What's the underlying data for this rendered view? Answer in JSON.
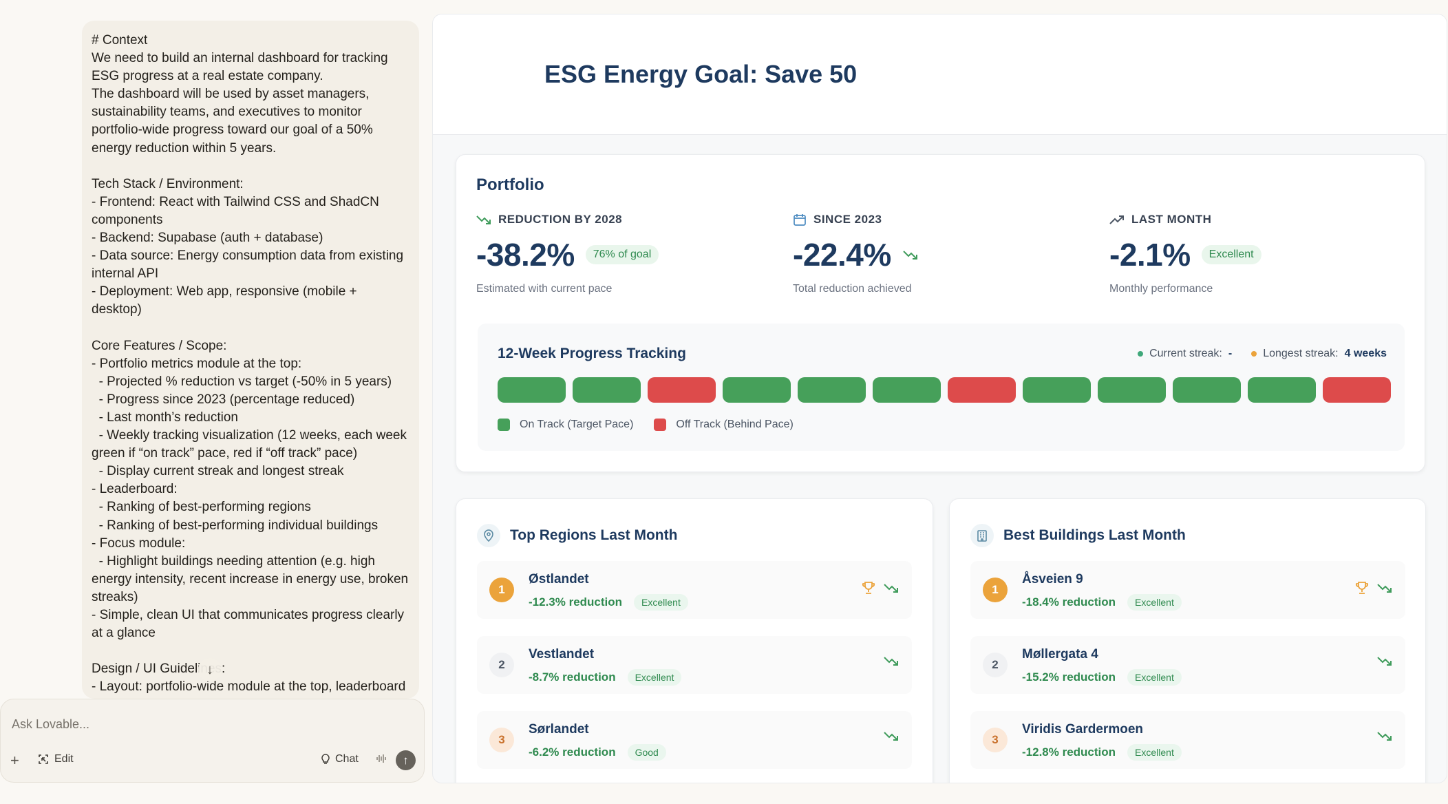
{
  "chat": {
    "prompt_lines": [
      "# Context",
      "We need to build an internal dashboard for tracking ESG progress at a real estate company.",
      "The dashboard will be used by asset managers, sustainability teams, and executives to monitor portfolio-wide progress toward our goal of a 50% energy reduction within 5 years.",
      "",
      "Tech Stack / Environment:",
      "- Frontend: React with Tailwind CSS and ShadCN components",
      "- Backend: Supabase (auth + database)",
      "- Data source: Energy consumption data from existing internal API",
      "- Deployment: Web app, responsive (mobile + desktop)",
      "",
      "Core Features / Scope:",
      "- Portfolio metrics module at the top:",
      "  - Projected % reduction vs target (-50% in 5 years)",
      "  - Progress since 2023 (percentage reduced)",
      "  - Last month’s reduction",
      "  - Weekly tracking visualization (12 weeks, each week green if “on track” pace, red if “off track” pace)",
      "  - Display current streak and longest streak",
      "- Leaderboard:",
      "  - Ranking of best-performing regions",
      "  - Ranking of best-performing individual buildings",
      "- Focus module:",
      "  - Highlight buildings needing attention (e.g. high energy intensity, recent increase in energy use, broken streaks)",
      "- Simple, clean UI that communicates progress clearly at a glance",
      "",
      "Design / UI Guidelines:",
      "- Layout: portfolio-wide module at the top, leaderboard in bottom left, focus module in bottom right"
    ],
    "composer_placeholder": "Ask Lovable...",
    "edit_label": "Edit",
    "chat_label": "Chat"
  },
  "dashboard": {
    "title": "ESG Energy Goal: Save 50",
    "portfolio": {
      "title": "Portfolio",
      "metrics": [
        {
          "label": "REDUCTION BY 2028",
          "value": "-38.2%",
          "pill": "76% of goal",
          "sub": "Estimated with current pace",
          "icon": "trend-down-icon"
        },
        {
          "label": "SINCE 2023",
          "value": "-22.4%",
          "pill": "",
          "sub": "Total reduction achieved",
          "icon": "calendar-icon"
        },
        {
          "label": "LAST MONTH",
          "value": "-2.1%",
          "pill": "Excellent",
          "sub": "Monthly performance",
          "icon": "trend-up-icon"
        }
      ],
      "tracking": {
        "title": "12-Week Progress Tracking",
        "current_streak_label": "Current streak:",
        "current_streak_value": "-",
        "longest_streak_label": "Longest streak:",
        "longest_streak_value": "4 weeks",
        "weeks": [
          "on",
          "on",
          "off",
          "on",
          "on",
          "on",
          "off",
          "on",
          "on",
          "on",
          "on",
          "off"
        ],
        "legend_on": "On Track (Target Pace)",
        "legend_off": "Off Track (Behind Pace)",
        "colors": {
          "on": "#46a05a",
          "off": "#dd4b4b",
          "current_dot": "#40a87a",
          "longest_dot": "#eba33b"
        }
      }
    },
    "regions": {
      "title": "Top Regions Last Month",
      "items": [
        {
          "rank": "1",
          "name": "Østlandet",
          "reduction": "-12.3% reduction",
          "badge": "Excellent",
          "trophy": true
        },
        {
          "rank": "2",
          "name": "Vestlandet",
          "reduction": "-8.7% reduction",
          "badge": "Excellent",
          "trophy": false
        },
        {
          "rank": "3",
          "name": "Sørlandet",
          "reduction": "-6.2% reduction",
          "badge": "Good",
          "trophy": false
        }
      ]
    },
    "buildings": {
      "title": "Best Buildings Last Month",
      "items": [
        {
          "rank": "1",
          "name": "Åsveien 9",
          "reduction": "-18.4% reduction",
          "badge": "Excellent",
          "trophy": true
        },
        {
          "rank": "2",
          "name": "Møllergata 4",
          "reduction": "-15.2% reduction",
          "badge": "Excellent",
          "trophy": false
        },
        {
          "rank": "3",
          "name": "Viridis Gardermoen",
          "reduction": "-12.8% reduction",
          "badge": "Excellent",
          "trophy": false
        }
      ]
    }
  }
}
